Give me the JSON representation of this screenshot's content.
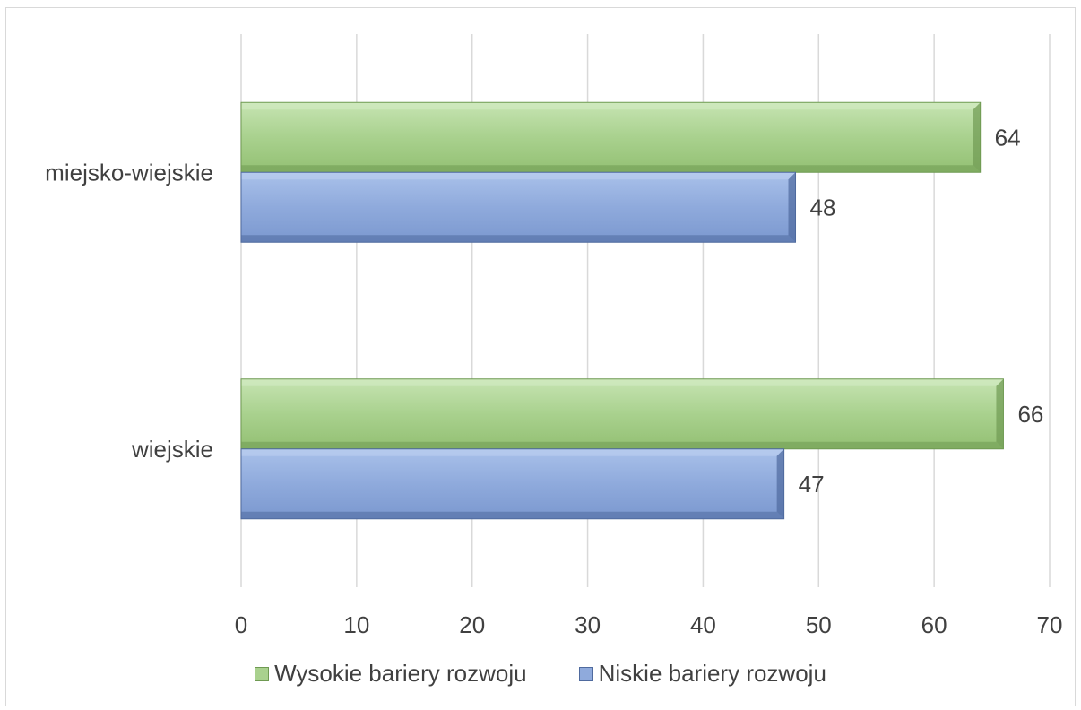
{
  "chart_data": {
    "type": "bar",
    "orientation": "horizontal",
    "categories": [
      "miejsko-wiejskie",
      "wiejskie"
    ],
    "series": [
      {
        "name": "Wysokie bariery rozwoju",
        "values": [
          64,
          66
        ],
        "color": "#a9d18e"
      },
      {
        "name": "Niskie bariery rozwoju",
        "values": [
          48,
          47
        ],
        "color": "#8faadc"
      }
    ],
    "data_labels": [
      [
        "64",
        "66"
      ],
      [
        "48",
        "47"
      ]
    ],
    "xlim": [
      0,
      70
    ],
    "xticks": [
      0,
      10,
      20,
      30,
      40,
      50,
      60,
      70
    ],
    "xtick_labels": [
      "0",
      "10",
      "20",
      "30",
      "40",
      "50",
      "60",
      "70"
    ],
    "title": "",
    "xlabel": "",
    "ylabel": "",
    "grid": "vertical",
    "legend_position": "bottom"
  }
}
